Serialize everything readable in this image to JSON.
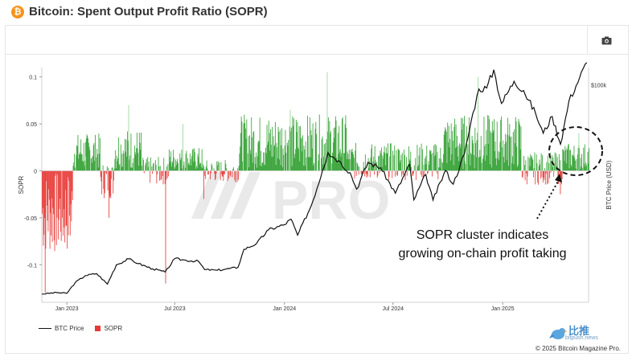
{
  "header": {
    "title": "Bitcoin: Spent Output Profit Ratio (SOPR)",
    "logo_icon": "bitcoin-logo-icon",
    "logo_glyph": "₿"
  },
  "toolbar": {
    "screenshot_icon": "camera-icon"
  },
  "watermark": {
    "text": "PRO"
  },
  "annotation": {
    "line1": "SOPR cluster indicates",
    "line2": "growing on-chain profit taking"
  },
  "legend": {
    "btc_price": "BTC Price",
    "sopr": "SOPR"
  },
  "colors": {
    "sopr_positive": "#2e9e2e",
    "sopr_negative": "#e53935",
    "btc_price": "#111111",
    "brand": "#f7931a"
  },
  "footer": {
    "copyright": "© 2025 Bitcoin Magazine Pro.",
    "source_cn": "比推",
    "source_en": "bitpush.news"
  },
  "chart_data": {
    "type": "bar",
    "y_left": {
      "label": "SOPR",
      "ticks": [
        "0.1",
        "0.05",
        "0",
        "-0.05",
        "-0.1"
      ],
      "tick_values": [
        0.1,
        0.05,
        0,
        -0.05,
        -0.1
      ],
      "range": [
        -0.14,
        0.11
      ]
    },
    "y_right": {
      "label": "BTC Price (USD)",
      "ticks": [
        "$100k"
      ],
      "tick_values": [
        100000
      ],
      "range": [
        13000,
        107000
      ]
    },
    "x_ticks": [
      {
        "label": "Jan 2023",
        "date": "2023-01-01"
      },
      {
        "label": "Jul 2023",
        "date": "2023-07-01"
      },
      {
        "label": "Jan 2024",
        "date": "2024-01-01"
      },
      {
        "label": "Jul 2024",
        "date": "2024-07-01"
      },
      {
        "label": "Jan 2025",
        "date": "2025-01-01"
      }
    ],
    "x_range": [
      "2022-11-20",
      "2025-05-25"
    ],
    "btc_price": [
      [
        "2022-11-20",
        16300
      ],
      [
        "2022-12-15",
        16900
      ],
      [
        "2023-01-01",
        16600
      ],
      [
        "2023-01-15",
        20900
      ],
      [
        "2023-02-01",
        23700
      ],
      [
        "2023-02-20",
        24500
      ],
      [
        "2023-03-10",
        20300
      ],
      [
        "2023-03-25",
        28000
      ],
      [
        "2023-04-15",
        30400
      ],
      [
        "2023-05-01",
        28500
      ],
      [
        "2023-05-25",
        26400
      ],
      [
        "2023-06-15",
        25100
      ],
      [
        "2023-07-01",
        30500
      ],
      [
        "2023-07-20",
        29800
      ],
      [
        "2023-08-10",
        29400
      ],
      [
        "2023-08-20",
        26100
      ],
      [
        "2023-09-10",
        25800
      ],
      [
        "2023-09-25",
        26300
      ],
      [
        "2023-10-15",
        27000
      ],
      [
        "2023-10-25",
        34200
      ],
      [
        "2023-11-15",
        36500
      ],
      [
        "2023-12-05",
        42000
      ],
      [
        "2024-01-01",
        44100
      ],
      [
        "2024-01-12",
        46300
      ],
      [
        "2024-01-23",
        39900
      ],
      [
        "2024-02-15",
        51800
      ],
      [
        "2024-03-05",
        66000
      ],
      [
        "2024-03-14",
        73000
      ],
      [
        "2024-04-01",
        69700
      ],
      [
        "2024-04-20",
        64900
      ],
      [
        "2024-05-01",
        58300
      ],
      [
        "2024-05-20",
        69000
      ],
      [
        "2024-06-10",
        66900
      ],
      [
        "2024-07-05",
        56700
      ],
      [
        "2024-07-29",
        68200
      ],
      [
        "2024-08-05",
        54000
      ],
      [
        "2024-08-25",
        64200
      ],
      [
        "2024-09-06",
        53900
      ],
      [
        "2024-09-27",
        65800
      ],
      [
        "2024-10-10",
        60300
      ],
      [
        "2024-10-29",
        72600
      ],
      [
        "2024-11-12",
        88700
      ],
      [
        "2024-11-22",
        98400
      ],
      [
        "2024-12-05",
        98800
      ],
      [
        "2024-12-17",
        106100
      ],
      [
        "2024-12-30",
        92600
      ],
      [
        "2025-01-20",
        101500
      ],
      [
        "2025-02-05",
        97800
      ],
      [
        "2025-02-25",
        88700
      ],
      [
        "2025-03-10",
        80700
      ],
      [
        "2025-03-25",
        87400
      ],
      [
        "2025-04-08",
        76300
      ],
      [
        "2025-04-22",
        93500
      ],
      [
        "2025-05-10",
        103000
      ],
      [
        "2025-05-22",
        109000
      ]
    ],
    "sopr_clusters": [
      {
        "start": "2022-11-20",
        "end": "2023-01-10",
        "min": -0.09,
        "max": 0.0,
        "peak": -0.13,
        "peak_date": "2022-11-25"
      },
      {
        "start": "2023-01-11",
        "end": "2023-02-25",
        "min": 0.0,
        "max": 0.04,
        "peak": 0.015,
        "peak_date": "2023-02-01"
      },
      {
        "start": "2023-02-26",
        "end": "2023-03-20",
        "min": -0.03,
        "max": 0.01,
        "peak": -0.05,
        "peak_date": "2023-03-12"
      },
      {
        "start": "2023-03-21",
        "end": "2023-05-05",
        "min": 0.0,
        "max": 0.045,
        "peak": 0.07,
        "peak_date": "2023-04-14"
      },
      {
        "start": "2023-05-06",
        "end": "2023-06-20",
        "min": -0.015,
        "max": 0.015,
        "peak": -0.12,
        "peak_date": "2023-06-15"
      },
      {
        "start": "2023-06-21",
        "end": "2023-08-15",
        "min": 0.0,
        "max": 0.025,
        "peak": 0.05,
        "peak_date": "2023-07-14"
      },
      {
        "start": "2023-08-16",
        "end": "2023-10-15",
        "min": -0.012,
        "max": 0.012,
        "peak": -0.03,
        "peak_date": "2023-08-18"
      },
      {
        "start": "2023-10-16",
        "end": "2024-04-15",
        "min": 0.0,
        "max": 0.06,
        "peak": 0.065,
        "peak_date": "2024-01-10"
      },
      {
        "start": "2024-04-16",
        "end": "2024-09-20",
        "min": -0.01,
        "max": 0.03,
        "peak": 0.105,
        "peak_date": "2024-03-12"
      },
      {
        "start": "2024-09-21",
        "end": "2025-01-31",
        "min": 0.0,
        "max": 0.06,
        "peak": 0.1,
        "peak_date": "2024-11-20"
      },
      {
        "start": "2025-02-01",
        "end": "2025-04-10",
        "min": -0.015,
        "max": 0.02,
        "peak": -0.025,
        "peak_date": "2025-04-07"
      },
      {
        "start": "2025-04-11",
        "end": "2025-05-25",
        "min": 0.0,
        "max": 0.03,
        "peak": 0.04,
        "peak_date": "2025-05-08"
      }
    ]
  }
}
